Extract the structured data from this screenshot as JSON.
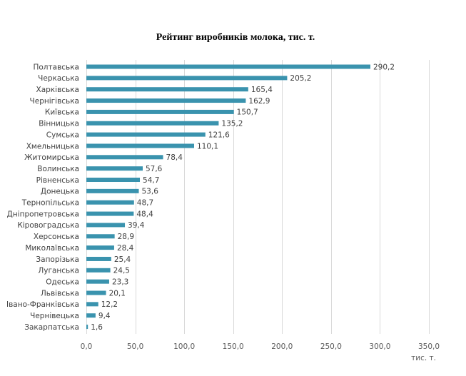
{
  "chart_data": {
    "type": "bar",
    "orientation": "horizontal",
    "title": "Рейтинг виробників молока, тис. т.",
    "xlabel": "тис. т.",
    "ylabel": "",
    "xlim": [
      0,
      350
    ],
    "x_ticks": [
      "0,0",
      "50,0",
      "100,0",
      "150,0",
      "200,0",
      "250,0",
      "300,0",
      "350,0"
    ],
    "x_tick_values": [
      0,
      50,
      100,
      150,
      200,
      250,
      300,
      350
    ],
    "grid": true,
    "bar_color": "#3A93AE",
    "categories": [
      "Полтавська",
      "Черкаська",
      "Харківська",
      "Чернігівська",
      "Київська",
      "Вінницька",
      "Сумська",
      "Хмельницька",
      "Житомирська",
      "Волинська",
      "Рівненська",
      "Донецька",
      "Тернопільська",
      "Дніпропетровська",
      "Кіровоградська",
      "Херсонська",
      "Миколаївська",
      "Запорізька",
      "Луганська",
      "Одеська",
      "Львівська",
      "Івано-Франківська",
      "Чернівецька",
      "Закарпатська"
    ],
    "values": [
      290.2,
      205.2,
      165.4,
      162.9,
      150.7,
      135.2,
      121.6,
      110.1,
      78.4,
      57.6,
      54.7,
      53.6,
      48.7,
      48.4,
      39.4,
      28.9,
      28.4,
      25.4,
      24.5,
      23.3,
      20.1,
      12.2,
      9.4,
      1.6
    ],
    "value_labels": [
      "290,2",
      "205,2",
      "165,4",
      "162,9",
      "150,7",
      "135,2",
      "121,6",
      "110,1",
      "78,4",
      "57,6",
      "54,7",
      "53,6",
      "48,7",
      "48,4",
      "39,4",
      "28,9",
      "28,4",
      "25,4",
      "24,5",
      "23,3",
      "20,1",
      "12,2",
      "9,4",
      "1,6"
    ]
  }
}
